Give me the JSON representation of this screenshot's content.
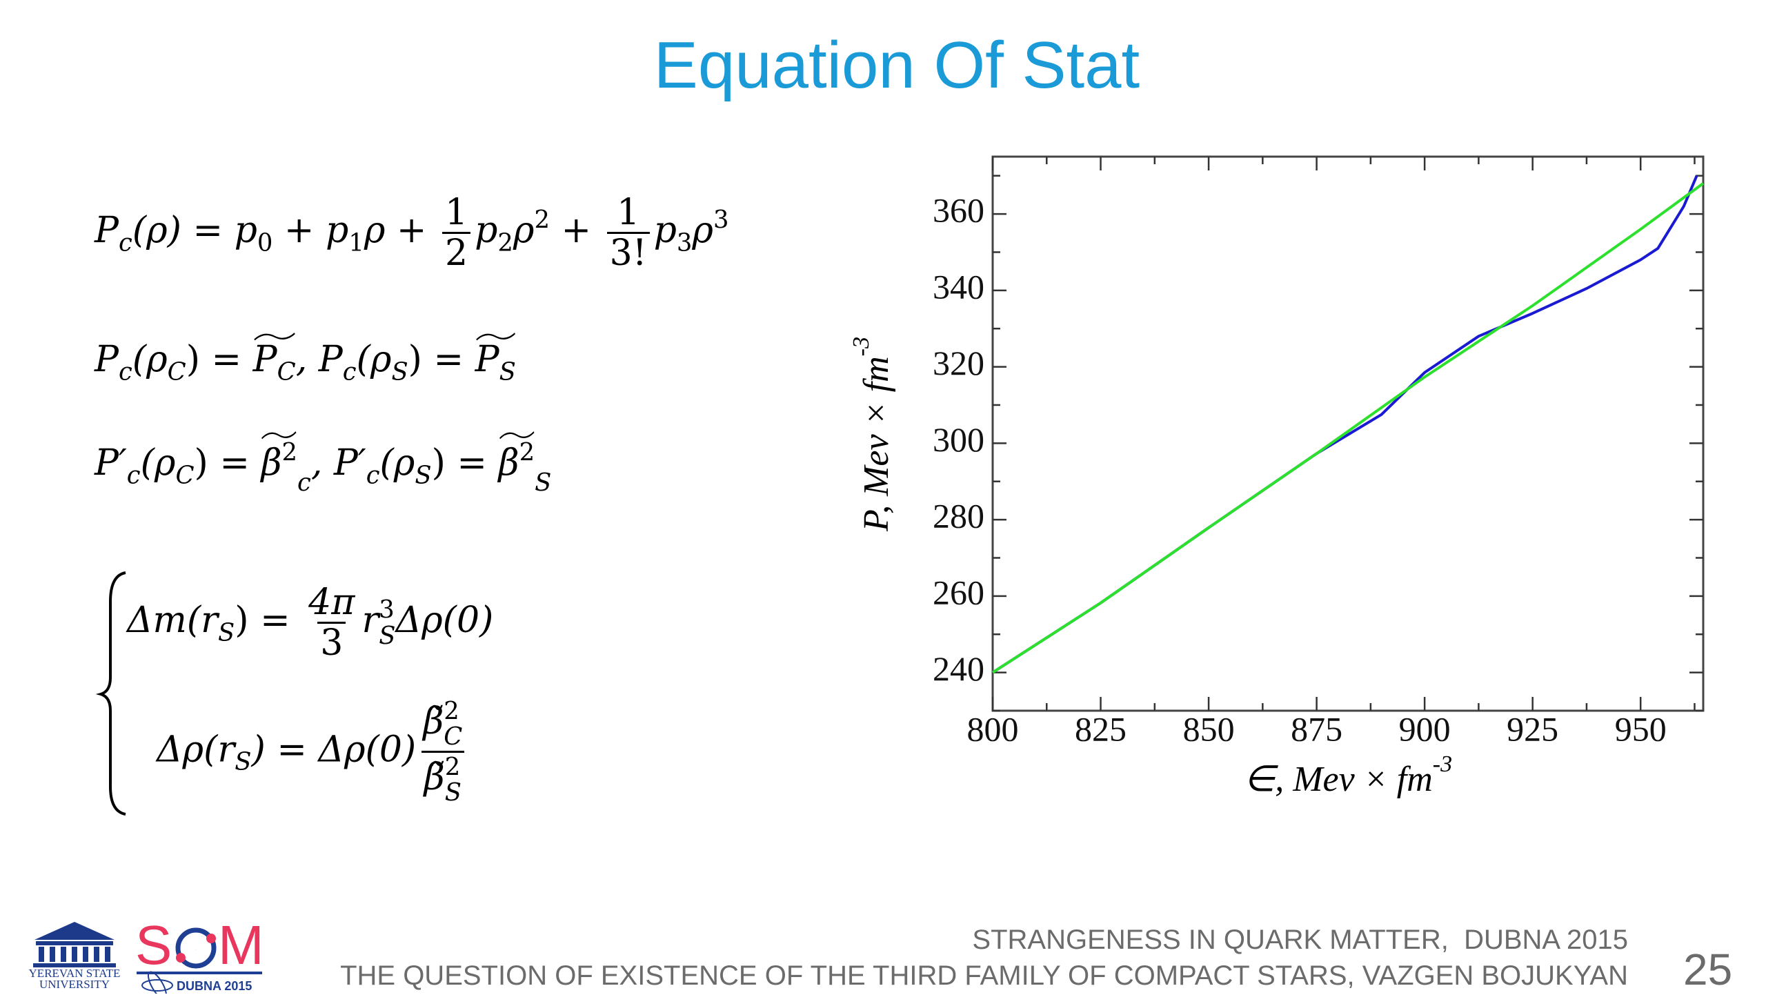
{
  "title": "Equation Of Stat",
  "equations": [
    [
      "P",
      "c",
      "(ρ) = ",
      "p",
      "0",
      " + ",
      "p",
      "1",
      "ρ + ",
      "1",
      "2",
      "p",
      "2",
      "ρ",
      "2",
      " + ",
      "1",
      "3!",
      "p",
      "3",
      "ρ",
      "3"
    ],
    [
      "P",
      "c",
      "(ρ",
      "C",
      ") = ",
      "P",
      "C",
      ", P",
      "c",
      "(ρ",
      "S",
      ") = ",
      "P",
      "S"
    ],
    [
      "P′",
      "c",
      "(ρ",
      "C",
      ") = ",
      "β",
      "2",
      "c",
      ", P′",
      "c",
      "(ρ",
      "S",
      ") = ",
      "β",
      "2",
      "S"
    ]
  ],
  "system": [
    [
      "Δm(r",
      "S",
      ") = ",
      "4π",
      "3",
      "r",
      "S",
      "3",
      "Δρ(0)"
    ],
    [
      "Δρ(r",
      "S",
      ") = Δρ(0)",
      "β̃",
      "C",
      "2",
      "β̃",
      "S",
      "2"
    ]
  ],
  "chart_data": {
    "type": "line",
    "xlabel": {
      "text": "∈, Mev × fm",
      "superscript": "-3"
    },
    "ylabel": {
      "text": "P, Mev × fm",
      "superscript": "-3"
    },
    "xlim": [
      800,
      964.5
    ],
    "ylim": [
      230,
      375
    ],
    "xticks": [
      800,
      825,
      850,
      875,
      900,
      925,
      950
    ],
    "yticks": [
      240,
      260,
      280,
      300,
      320,
      340,
      360
    ],
    "xminorticks": [
      812.5,
      837.5,
      862.5,
      887.5,
      912.5,
      937.5,
      962.5
    ],
    "yminorticks": [
      230,
      250,
      270,
      290,
      310,
      330,
      350,
      370
    ],
    "series": [
      {
        "color": "#1a1ad2",
        "x": [
          800,
          825,
          850,
          875,
          890,
          900,
          912.5,
          925,
          937.5,
          950,
          954,
          960,
          963
        ],
        "values": [
          240,
          258.2,
          277.9,
          297.3,
          307.5,
          318.5,
          328,
          334,
          340.5,
          348,
          351,
          362,
          370
        ]
      },
      {
        "color": "#2ee02e",
        "x": [
          800,
          825,
          850,
          875,
          900,
          925,
          950,
          964.5
        ],
        "values": [
          240,
          258.2,
          277.9,
          297.3,
          317.3,
          336,
          356,
          368
        ]
      }
    ]
  },
  "footer": {
    "conference": "STRANGENESS IN QUARK MATTER,  DUBNA 2015",
    "talk": "THE QUESTION OF EXISTENCE OF THE THIRD FAMILY OF COMPACT STARS, VAZGEN BOJUKYAN",
    "page": "25"
  },
  "logos": {
    "ysu": [
      "YEREVAN STATE",
      "UNIVERSITY"
    ],
    "sqm": {
      "name": [
        "S",
        "Q",
        "M"
      ],
      "place": "DUBNA 2015"
    }
  }
}
